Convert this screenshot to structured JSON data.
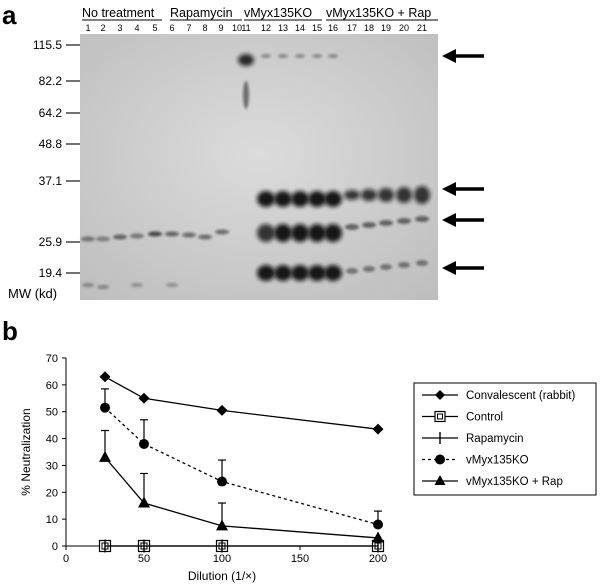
{
  "figure": {
    "panel_a_label": "a",
    "panel_b_label": "b"
  },
  "blot": {
    "groups": [
      {
        "label": "No treatment",
        "lanes": [
          "1",
          "2",
          "3",
          "4",
          "5"
        ]
      },
      {
        "label": "Rapamycin",
        "lanes": [
          "6",
          "7",
          "8",
          "9",
          "10"
        ]
      },
      {
        "label": "vMyx135KO",
        "lanes": [
          "11",
          "12",
          "13",
          "14",
          "15"
        ]
      },
      {
        "label": "vMyx135KO + Rap",
        "lanes": [
          "16",
          "17",
          "18",
          "19",
          "20",
          "21"
        ]
      }
    ],
    "mw_markers": [
      "115.5",
      "82.2",
      "64.2",
      "48.8",
      "37.1",
      "25.9",
      "19.4"
    ],
    "mw_unit_label": "MW (kd)",
    "arrows": 4
  },
  "chart_data": {
    "type": "line",
    "xlabel": "Dilution (1/×)",
    "ylabel": "% Neutralization",
    "xlim": [
      0,
      200
    ],
    "ylim": [
      0,
      70
    ],
    "xticks": [
      "0",
      "50",
      "100",
      "150",
      "200"
    ],
    "yticks": [
      "0",
      "10",
      "20",
      "30",
      "40",
      "50",
      "60",
      "70"
    ],
    "x": [
      25,
      50,
      100,
      200
    ],
    "legend_position": "right",
    "series": [
      {
        "name": "Convalescent (rabbit)",
        "values": [
          63,
          55,
          50.5,
          43.5
        ],
        "marker": "diamond",
        "line": "solid"
      },
      {
        "name": "Control",
        "values": [
          0,
          0,
          0,
          0
        ],
        "marker": "open-square",
        "line": "solid"
      },
      {
        "name": "Rapamycin",
        "values": [
          0,
          0,
          0,
          0
        ],
        "marker": "plus",
        "line": "solid"
      },
      {
        "name": "vMyx135KO",
        "values": [
          51.5,
          38,
          24,
          8
        ],
        "errors": [
          7,
          9,
          8,
          5
        ],
        "marker": "circle",
        "line": "dotted"
      },
      {
        "name": "vMyx135KO + Rap",
        "values": [
          33,
          16,
          7.5,
          3
        ],
        "errors": [
          10,
          11,
          8.5,
          0
        ],
        "marker": "triangle",
        "line": "solid"
      }
    ]
  }
}
